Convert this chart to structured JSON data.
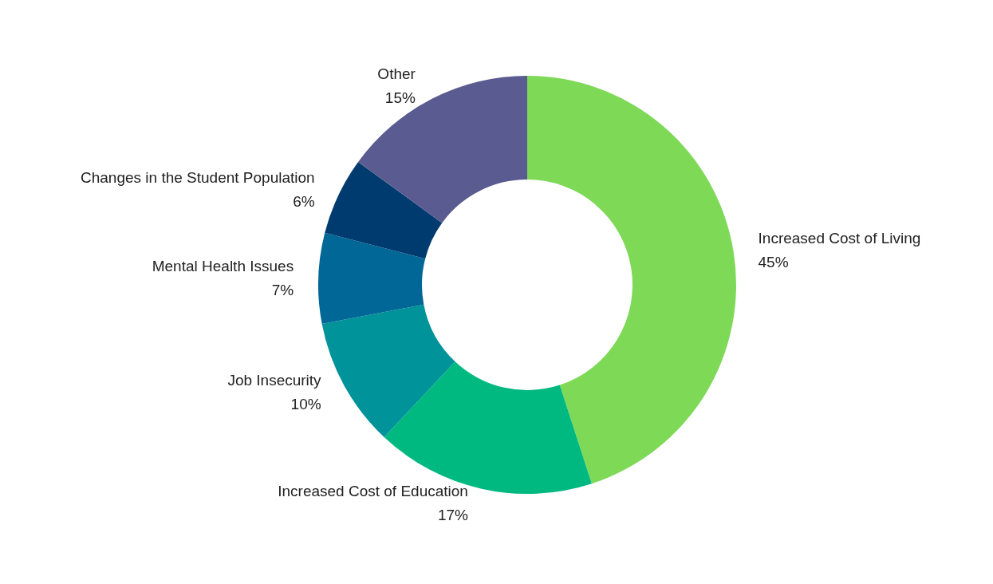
{
  "chart_data": {
    "type": "donut",
    "categories": [
      "Increased Cost of Living",
      "Increased Cost of Education",
      "Job Insecurity",
      "Mental Health Issues",
      "Changes in the Student Population",
      "Other"
    ],
    "values": [
      45,
      17,
      10,
      7,
      6,
      15
    ],
    "colors": [
      "#7ed957",
      "#00b980",
      "#00939a",
      "#006796",
      "#003b6f",
      "#5a5c91"
    ],
    "value_labels": [
      "45%",
      "17%",
      "10%",
      "7%",
      "6%",
      "15%"
    ],
    "legend": false
  }
}
